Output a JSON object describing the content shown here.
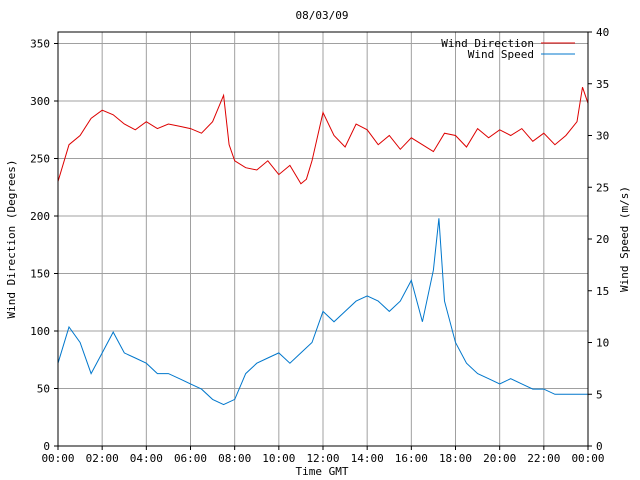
{
  "chart_data": {
    "type": "line",
    "title": "08/03/09",
    "xlabel": "Time GMT",
    "ylabel_left": "Wind Direction (Degrees)",
    "ylabel_right": "Wind Speed (m/s)",
    "x_ticks": [
      "00:00",
      "02:00",
      "04:00",
      "06:00",
      "08:00",
      "10:00",
      "12:00",
      "14:00",
      "16:00",
      "18:00",
      "20:00",
      "22:00",
      "00:00"
    ],
    "x_range_hours": [
      0,
      24
    ],
    "y_left_range": [
      0,
      360
    ],
    "y_left_ticks": [
      "0",
      "50",
      "100",
      "150",
      "200",
      "250",
      "300",
      "350"
    ],
    "y_right_range": [
      0,
      40
    ],
    "y_right_ticks": [
      "0",
      "5",
      "10",
      "15",
      "20",
      "25",
      "30",
      "35",
      "40"
    ],
    "grid": true,
    "legend_position": "top-right",
    "series": [
      {
        "name": "Wind Direction",
        "axis": "left",
        "color": "#dd0000",
        "x_hours": [
          0,
          0.5,
          1,
          1.5,
          2,
          2.5,
          3,
          3.5,
          4,
          4.5,
          5,
          5.5,
          6,
          6.5,
          7,
          7.5,
          7.75,
          8,
          8.5,
          9,
          9.5,
          10,
          10.5,
          11,
          11.25,
          11.5,
          12,
          12.5,
          13,
          13.5,
          14,
          14.5,
          15,
          15.5,
          16,
          16.5,
          17,
          17.5,
          18,
          18.5,
          19,
          19.5,
          20,
          20.5,
          21,
          21.5,
          22,
          22.5,
          23,
          23.5,
          23.75,
          24
        ],
        "values": [
          230,
          262,
          270,
          285,
          292,
          288,
          280,
          275,
          282,
          276,
          280,
          278,
          276,
          272,
          282,
          305,
          262,
          248,
          242,
          240,
          248,
          236,
          244,
          228,
          232,
          248,
          290,
          270,
          260,
          280,
          275,
          262,
          270,
          258,
          268,
          262,
          256,
          272,
          270,
          260,
          276,
          268,
          275,
          270,
          276,
          265,
          272,
          262,
          270,
          282,
          312,
          298
        ]
      },
      {
        "name": "Wind Speed",
        "axis": "right",
        "color": "#0077cc",
        "x_hours": [
          0,
          0.5,
          1,
          1.5,
          2,
          2.5,
          3,
          3.5,
          4,
          4.5,
          5,
          5.5,
          6,
          6.5,
          7,
          7.5,
          8,
          8.5,
          9,
          9.5,
          10,
          10.5,
          11,
          11.5,
          12,
          12.5,
          13,
          13.5,
          14,
          14.5,
          15,
          15.5,
          16,
          16.5,
          17,
          17.25,
          17.5,
          18,
          18.5,
          19,
          19.5,
          20,
          20.5,
          21,
          21.5,
          22,
          22.5,
          23,
          23.5,
          24
        ],
        "values": [
          8,
          11.5,
          10,
          7,
          9,
          11,
          9,
          8.5,
          8,
          7,
          7,
          6.5,
          6,
          5.5,
          4.5,
          4,
          4.5,
          7,
          8,
          8.5,
          9,
          8,
          9,
          10,
          13,
          12,
          13,
          14,
          14.5,
          14,
          13,
          14,
          16,
          12,
          17,
          22,
          14,
          10,
          8,
          7,
          6.5,
          6,
          6.5,
          6,
          5.5,
          5.5,
          5,
          5,
          5,
          5
        ]
      }
    ]
  }
}
